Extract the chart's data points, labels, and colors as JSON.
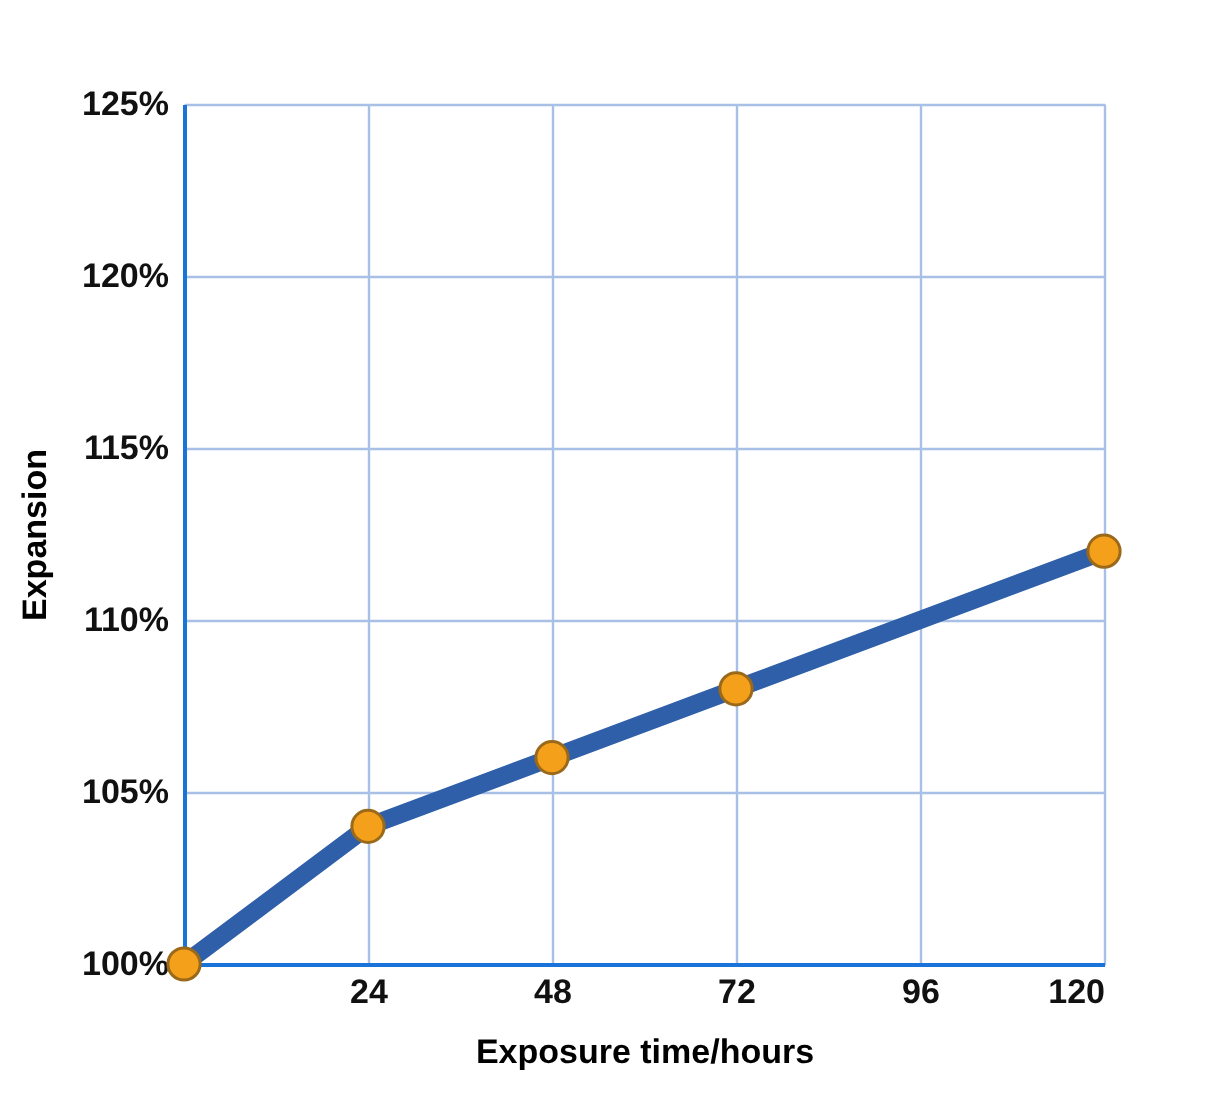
{
  "chart_data": {
    "type": "line",
    "xlabel": "Exposure time/hours",
    "ylabel": "Expansion",
    "x": [
      0,
      24,
      48,
      72,
      120
    ],
    "series": [
      {
        "color": "#2e5fa8",
        "colors": [
          "#f5a01a",
          "#f5a01a",
          "#f5a01a",
          "#f5a01a",
          "#f5a01a"
        ],
        "values": [
          100,
          104,
          106,
          108,
          112
        ]
      }
    ],
    "marker": "circle",
    "line_style": "solid",
    "xlim": [
      0,
      120
    ],
    "xticks": [
      24,
      48,
      72,
      96,
      120
    ],
    "ylim": [
      100,
      125
    ],
    "yticks": [
      {
        "value": 100,
        "label": "100%"
      },
      {
        "value": 105,
        "label": "105%"
      },
      {
        "value": 110,
        "label": "110%"
      },
      {
        "value": 115,
        "label": "115%"
      },
      {
        "value": 120,
        "label": "120%"
      },
      {
        "value": 125,
        "label": "125%"
      }
    ],
    "grid": true
  }
}
